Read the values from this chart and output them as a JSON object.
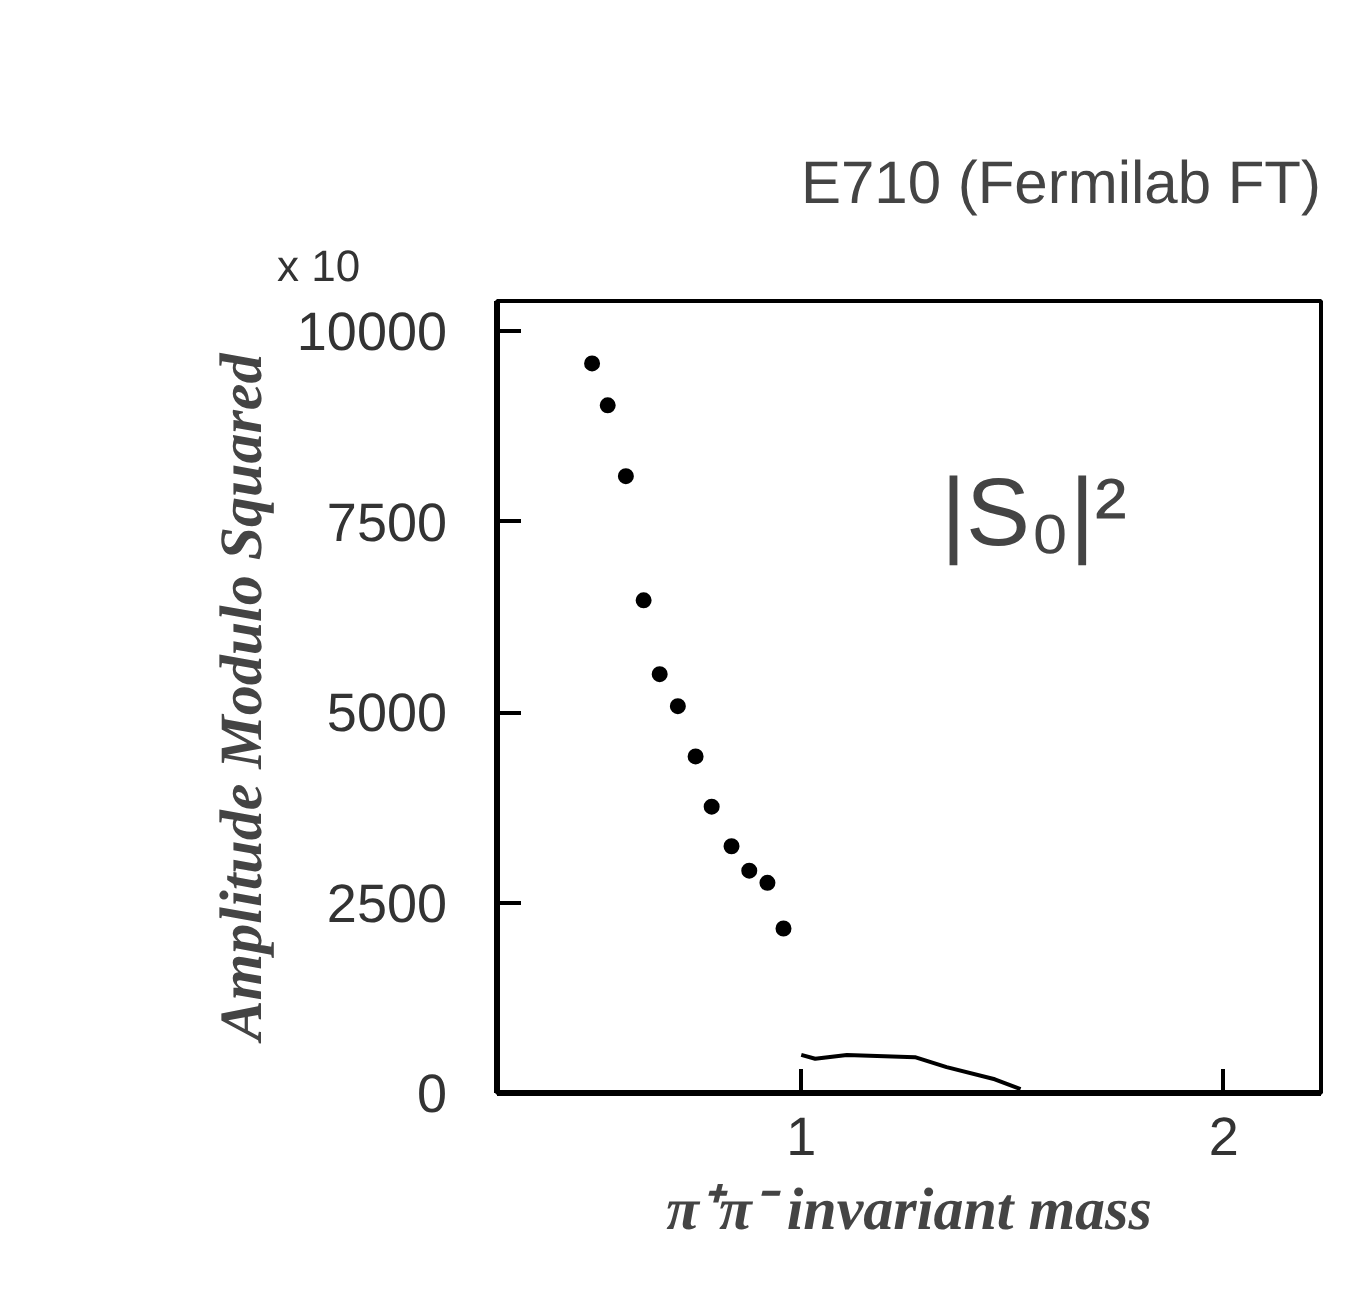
{
  "chart_data": {
    "type": "scatter",
    "title": "E710 (Fermilab FT)",
    "xlabel": "π⁺π⁻ invariant mass",
    "ylabel": "Amplitude Modulo Squared",
    "xlim": [
      0.28,
      2.23
    ],
    "ylim": [
      0,
      10400
    ],
    "xticks": [
      1,
      2
    ],
    "yticks": [
      0,
      2500,
      5000,
      7500,
      10000
    ],
    "annotations": [
      "x 10",
      "|S₀|²"
    ],
    "grid": false,
    "series": [
      {
        "color": "#000000",
        "marker": "circle",
        "x": [
          0.505,
          0.542,
          0.585,
          0.627,
          0.665,
          0.708,
          0.75,
          0.788,
          0.835,
          0.877,
          0.92,
          0.958
        ],
        "values": [
          9580,
          9030,
          8100,
          6470,
          5500,
          5080,
          4420,
          3760,
          3240,
          2920,
          2760,
          2160
        ]
      },
      {
        "type": "line",
        "color": "#000000",
        "marker": "none",
        "line_style": "solid",
        "x": [
          1.0,
          1.033,
          1.108,
          1.269,
          1.344,
          1.458,
          1.519
        ],
        "values": [
          500,
          450,
          500,
          470,
          340,
          180,
          50
        ]
      }
    ]
  }
}
